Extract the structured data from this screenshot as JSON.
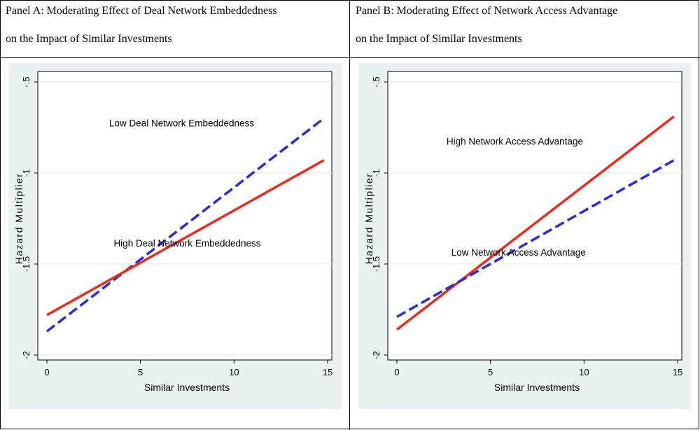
{
  "panels": [
    {
      "title_line1": "Panel A: Moderating Effect of Deal Network Embeddedness",
      "title_line2": "on the Impact of Similar Investments"
    },
    {
      "title_line1": "Panel B: Moderating Effect of Network Access Advantage",
      "title_line2": "on the Impact of Similar Investments"
    }
  ],
  "chart_data": [
    {
      "type": "line",
      "xlabel": "Similar Investments",
      "ylabel": "Hazard Multiplier",
      "xlim": [
        0,
        15
      ],
      "ylim": [
        -2,
        -0.5
      ],
      "xticks": [
        "0",
        "5",
        "10",
        "15"
      ],
      "yticks": [
        "-2",
        "-1.5",
        "-1",
        "-.5"
      ],
      "grid": true,
      "series": [
        {
          "name": "Low Deal Network Embeddedness",
          "style": "dashed",
          "color": "#2b2bd4",
          "x": [
            0,
            14.8
          ],
          "y": [
            -1.87,
            -0.7
          ]
        },
        {
          "name": "High Deal Network Embeddedness",
          "style": "solid",
          "color": "#ee2a1e",
          "x": [
            0,
            14.8
          ],
          "y": [
            -1.78,
            -0.93
          ]
        }
      ],
      "annotations": [
        {
          "text": "Low Deal Network Embeddedness",
          "x": 7.2,
          "y": -0.73
        },
        {
          "text": "High Deal Network Embeddedness",
          "x": 7.5,
          "y": -1.39
        }
      ]
    },
    {
      "type": "line",
      "xlabel": "Similar Investments",
      "ylabel": "Hazard Multiplier",
      "xlim": [
        0,
        15
      ],
      "ylim": [
        -2,
        -0.5
      ],
      "xticks": [
        "0",
        "5",
        "10",
        "15"
      ],
      "yticks": [
        "-2",
        "-1.5",
        "-1",
        "-.5"
      ],
      "grid": true,
      "series": [
        {
          "name": "High Network Access Advantage",
          "style": "solid",
          "color": "#ee2a1e",
          "x": [
            0,
            14.8
          ],
          "y": [
            -1.86,
            -0.69
          ]
        },
        {
          "name": "Low Network Access Advantage",
          "style": "dashed",
          "color": "#2b2bd4",
          "x": [
            0,
            14.8
          ],
          "y": [
            -1.79,
            -0.93
          ]
        }
      ],
      "annotations": [
        {
          "text": "High Network Access Advantage",
          "x": 6.3,
          "y": -0.83
        },
        {
          "text": "Low Network Access Advantage",
          "x": 6.5,
          "y": -1.44
        }
      ]
    }
  ]
}
